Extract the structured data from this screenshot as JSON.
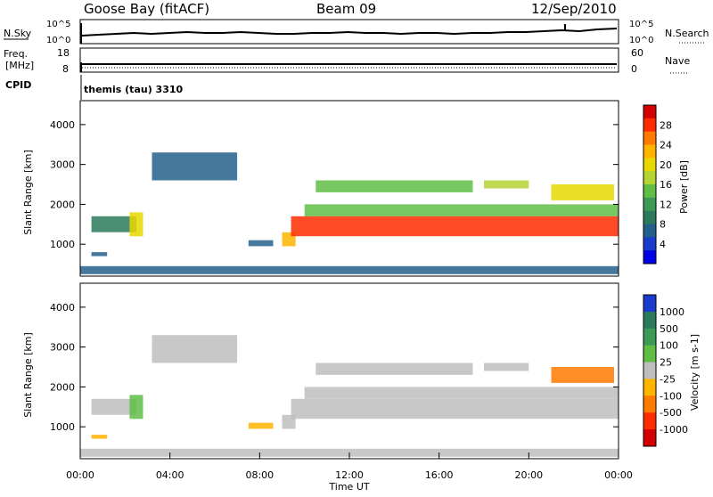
{
  "header": {
    "station": "Goose Bay (fitACF)",
    "beam": "Beam 09",
    "date": "12/Sep/2010"
  },
  "noise_panel": {
    "left_label": "N.Sky",
    "left_ticks": [
      "10^5",
      "10^0"
    ],
    "right_ticks": [
      "10^5",
      "10^0"
    ],
    "right_label": "N.Search"
  },
  "freq_panel": {
    "left_label_1": "Freq.",
    "left_label_2": "[MHz]",
    "left_ticks": [
      "18",
      "8"
    ],
    "right_ticks": [
      "60",
      "0"
    ],
    "right_label": "Nave",
    "cpid_label": "CPID",
    "cpid_value": "themis (tau) 3310"
  },
  "chart_data": [
    {
      "type": "heatmap",
      "name": "power",
      "ylabel": "Slant Range [km]",
      "ylim": [
        200,
        4600
      ],
      "yticks": [
        1000,
        2000,
        3000,
        4000
      ],
      "ytick_labels": [
        "1000",
        "2000",
        "3000",
        "4000"
      ],
      "xlim": [
        0,
        24
      ],
      "colorbar": {
        "label": "Power [dB]",
        "labels": [
          "28",
          "24",
          "20",
          "16",
          "12",
          "8",
          "4"
        ],
        "colors": [
          "#d20000",
          "#ff2c00",
          "#ff7a00",
          "#ffb400",
          "#e8d800",
          "#b4d432",
          "#5fbe46",
          "#3c9a54",
          "#2c7a5c",
          "#24608c",
          "#1a3ccc",
          "#0000e6"
        ]
      },
      "regions": [
        {
          "x": [
            0.5,
            2.5
          ],
          "y": [
            1300,
            1700
          ],
          "color": "#2c7a5c"
        },
        {
          "x": [
            0.5,
            1.2
          ],
          "y": [
            700,
            800
          ],
          "color": "#24608c"
        },
        {
          "x": [
            2.2,
            2.8
          ],
          "y": [
            1200,
            1800
          ],
          "color": "#e8d800"
        },
        {
          "x": [
            3.2,
            7.0
          ],
          "y": [
            2600,
            3300
          ],
          "color": "#24608c"
        },
        {
          "x": [
            7.5,
            8.6
          ],
          "y": [
            950,
            1100
          ],
          "color": "#24608c"
        },
        {
          "x": [
            9.0,
            9.6
          ],
          "y": [
            950,
            1300
          ],
          "color": "#ffb400"
        },
        {
          "x": [
            9.4,
            24.0
          ],
          "y": [
            1200,
            1700
          ],
          "color": "#ff2c00"
        },
        {
          "x": [
            10.0,
            24.0
          ],
          "y": [
            1700,
            2000
          ],
          "color": "#5fbe46"
        },
        {
          "x": [
            10.5,
            17.5
          ],
          "y": [
            2300,
            2600
          ],
          "color": "#5fbe46"
        },
        {
          "x": [
            18.0,
            20.0
          ],
          "y": [
            2400,
            2600
          ],
          "color": "#b4d432"
        },
        {
          "x": [
            21.0,
            23.8
          ],
          "y": [
            2100,
            2500
          ],
          "color": "#e8d800"
        },
        {
          "x": [
            0.0,
            24.0
          ],
          "y": [
            250,
            450
          ],
          "color": "#24608c"
        }
      ]
    },
    {
      "type": "heatmap",
      "name": "velocity",
      "ylabel": "Slant Range [km]",
      "xlabel": "Time UT",
      "ylim": [
        200,
        4600
      ],
      "yticks": [
        1000,
        2000,
        3000,
        4000
      ],
      "ytick_labels": [
        "1000",
        "2000",
        "3000",
        "4000"
      ],
      "xlim": [
        0,
        24
      ],
      "xticks": [
        0,
        4,
        8,
        12,
        16,
        20,
        24
      ],
      "xtick_labels": [
        "00:00",
        "04:00",
        "08:00",
        "12:00",
        "16:00",
        "20:00",
        "00:00"
      ],
      "colorbar": {
        "label": "Velocity [m s-1]",
        "labels": [
          "1000",
          "500",
          "100",
          "25",
          "-25",
          "-100",
          "-500",
          "-1000"
        ],
        "colors": [
          "#1a3ccc",
          "#2c7a5c",
          "#3c9a54",
          "#5fbe46",
          "#bebebe",
          "#ffb400",
          "#ff7a00",
          "#ff2c00",
          "#d20000"
        ]
      },
      "regions": [
        {
          "x": [
            0.5,
            2.5
          ],
          "y": [
            1300,
            1700
          ],
          "color": "#bebebe"
        },
        {
          "x": [
            0.5,
            1.2
          ],
          "y": [
            700,
            800
          ],
          "color": "#ffb400"
        },
        {
          "x": [
            2.2,
            2.8
          ],
          "y": [
            1200,
            1800
          ],
          "color": "#5fbe46"
        },
        {
          "x": [
            3.2,
            7.0
          ],
          "y": [
            2600,
            3300
          ],
          "color": "#bebebe"
        },
        {
          "x": [
            7.5,
            8.6
          ],
          "y": [
            950,
            1100
          ],
          "color": "#ffb400"
        },
        {
          "x": [
            9.0,
            9.6
          ],
          "y": [
            950,
            1300
          ],
          "color": "#bebebe"
        },
        {
          "x": [
            9.4,
            24.0
          ],
          "y": [
            1200,
            1700
          ],
          "color": "#bebebe"
        },
        {
          "x": [
            10.0,
            24.0
          ],
          "y": [
            1700,
            2000
          ],
          "color": "#bebebe"
        },
        {
          "x": [
            10.5,
            17.5
          ],
          "y": [
            2300,
            2600
          ],
          "color": "#bebebe"
        },
        {
          "x": [
            18.0,
            20.0
          ],
          "y": [
            2400,
            2600
          ],
          "color": "#bebebe"
        },
        {
          "x": [
            21.0,
            23.8
          ],
          "y": [
            2100,
            2500
          ],
          "color": "#ff7a00"
        },
        {
          "x": [
            0.0,
            24.0
          ],
          "y": [
            250,
            450
          ],
          "color": "#bebebe"
        }
      ]
    }
  ]
}
